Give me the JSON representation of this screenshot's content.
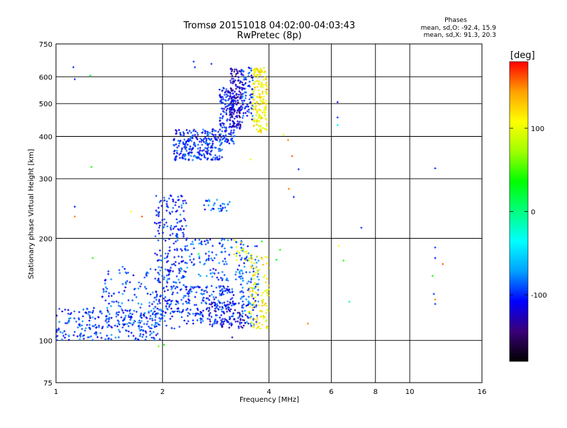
{
  "header": {
    "title_line1": "Tromsø 20151018 04:02:00-04:03:43",
    "title_line2": "RwPretec (8p)",
    "stats_title": "Phases",
    "stats_line1": "mean, sd,O: -92.4, 15.9",
    "stats_line2": "mean, sd,X:  91.3, 20.3"
  },
  "colorbar": {
    "label": "[deg]",
    "tick_labels": [
      "100",
      "0",
      "-100"
    ],
    "tick_values": [
      100,
      0,
      -100
    ],
    "range": [
      -180,
      180
    ],
    "stops": [
      "#000000",
      "#3a0078",
      "#0000ff",
      "#00a0ff",
      "#00ffff",
      "#00ff80",
      "#00ff00",
      "#a0ff00",
      "#ffff00",
      "#ffa000",
      "#ff0000"
    ]
  },
  "chart_data": {
    "type": "scatter",
    "title": "Tromsø 20151018 04:02:00-04:03:43",
    "subtitle": "RwPretec (8p)",
    "xlabel": "Frequency [MHz]",
    "ylabel": "Stationary phase Virtual Height [km]",
    "x_scale": "log",
    "y_scale": "log",
    "xlim": [
      1,
      16
    ],
    "ylim": [
      75,
      750
    ],
    "x_ticks": [
      1,
      2,
      4,
      6,
      8,
      10,
      16
    ],
    "y_ticks": [
      75,
      100,
      200,
      300,
      400,
      500,
      600,
      750
    ],
    "x_tick_labels": [
      "1",
      "2",
      "4",
      "6",
      "8",
      "10",
      "16"
    ],
    "y_tick_labels": [
      "75",
      "100",
      "200",
      "300",
      "400",
      "500",
      "600",
      "750"
    ],
    "grid": true,
    "color_variable": "phase [deg]",
    "series": [
      {
        "clusters": [
          {
            "f_range": [
              1.0,
              2.0
            ],
            "h_range": [
              100,
              125
            ],
            "phase": -95,
            "count": 260
          },
          {
            "f_range": [
              1.35,
              2.3
            ],
            "h_range": [
              108,
              165
            ],
            "phase": -95,
            "count": 160
          },
          {
            "f_range": [
              1.9,
              2.35
            ],
            "h_range": [
              120,
              270
            ],
            "phase": -100,
            "count": 240
          },
          {
            "f_range": [
              2.3,
              3.2
            ],
            "h_range": [
              112,
              145
            ],
            "phase": -100,
            "count": 200
          },
          {
            "f_range": [
              2.3,
              3.4
            ],
            "h_range": [
              150,
              200
            ],
            "phase": -90,
            "count": 110
          },
          {
            "f_range": [
              2.7,
              3.5
            ],
            "h_range": [
              108,
              130
            ],
            "phase": -120,
            "count": 80
          },
          {
            "f_range": [
              3.3,
              3.75
            ],
            "h_range": [
              110,
              190
            ],
            "phase": -90,
            "count": 110
          },
          {
            "f_range": [
              2.6,
              3.1
            ],
            "h_range": [
              240,
              260
            ],
            "phase": -90,
            "count": 30
          },
          {
            "f_range": [
              2.15,
              2.95
            ],
            "h_range": [
              340,
              420
            ],
            "phase": -100,
            "count": 260
          },
          {
            "f_range": [
              2.9,
              3.2
            ],
            "h_range": [
              380,
              560
            ],
            "phase": -105,
            "count": 140
          },
          {
            "f_range": [
              3.1,
              3.35
            ],
            "h_range": [
              420,
              640
            ],
            "phase": -125,
            "count": 150
          },
          {
            "f_range": [
              3.35,
              3.6
            ],
            "h_range": [
              440,
              640
            ],
            "phase": -100,
            "count": 80
          }
        ]
      },
      {
        "clusters": [
          {
            "f_range": [
              3.6,
              3.95
            ],
            "h_range": [
              410,
              640
            ],
            "phase": 110,
            "count": 170
          },
          {
            "f_range": [
              3.5,
              4.0
            ],
            "h_range": [
              108,
              180
            ],
            "phase": 110,
            "count": 110
          },
          {
            "f_range": [
              3.1,
              3.5
            ],
            "h_range": [
              170,
              200
            ],
            "phase": 100,
            "count": 14
          }
        ]
      }
    ],
    "scattered_points": [
      {
        "f": 1.12,
        "h": 640,
        "phase": -100
      },
      {
        "f": 1.13,
        "h": 590,
        "phase": -100
      },
      {
        "f": 1.25,
        "h": 605,
        "phase": 20
      },
      {
        "f": 1.26,
        "h": 325,
        "phase": 40
      },
      {
        "f": 1.13,
        "h": 248,
        "phase": -100
      },
      {
        "f": 1.13,
        "h": 232,
        "phase": 150
      },
      {
        "f": 1.27,
        "h": 175,
        "phase": 40
      },
      {
        "f": 1.63,
        "h": 240,
        "phase": 110
      },
      {
        "f": 1.75,
        "h": 232,
        "phase": 160
      },
      {
        "f": 1.95,
        "h": 96,
        "phase": 60
      },
      {
        "f": 2.02,
        "h": 97,
        "phase": 40
      },
      {
        "f": 2.45,
        "h": 665,
        "phase": -100
      },
      {
        "f": 2.47,
        "h": 640,
        "phase": -100
      },
      {
        "f": 2.75,
        "h": 655,
        "phase": -100
      },
      {
        "f": 3.55,
        "h": 342,
        "phase": 100
      },
      {
        "f": 3.95,
        "h": 550,
        "phase": 160
      },
      {
        "f": 3.97,
        "h": 560,
        "phase": 110
      },
      {
        "f": 4.4,
        "h": 405,
        "phase": 100
      },
      {
        "f": 4.53,
        "h": 390,
        "phase": 150
      },
      {
        "f": 4.65,
        "h": 350,
        "phase": 160
      },
      {
        "f": 4.85,
        "h": 320,
        "phase": -100
      },
      {
        "f": 4.7,
        "h": 265,
        "phase": -100
      },
      {
        "f": 4.55,
        "h": 280,
        "phase": 150
      },
      {
        "f": 5.15,
        "h": 112,
        "phase": 150
      },
      {
        "f": 6.25,
        "h": 505,
        "phase": -120
      },
      {
        "f": 6.25,
        "h": 455,
        "phase": -100
      },
      {
        "f": 6.25,
        "h": 432,
        "phase": -40
      },
      {
        "f": 6.3,
        "h": 190,
        "phase": 110
      },
      {
        "f": 6.5,
        "h": 172,
        "phase": 40
      },
      {
        "f": 6.75,
        "h": 130,
        "phase": -10
      },
      {
        "f": 7.3,
        "h": 215,
        "phase": -100
      },
      {
        "f": 11.8,
        "h": 322,
        "phase": -100
      },
      {
        "f": 11.8,
        "h": 188,
        "phase": -100
      },
      {
        "f": 11.8,
        "h": 175,
        "phase": -110
      },
      {
        "f": 11.6,
        "h": 155,
        "phase": 40
      },
      {
        "f": 11.7,
        "h": 137,
        "phase": -100
      },
      {
        "f": 11.8,
        "h": 132,
        "phase": 150
      },
      {
        "f": 11.8,
        "h": 128,
        "phase": -100
      },
      {
        "f": 12.4,
        "h": 168,
        "phase": 160
      },
      {
        "f": 3.15,
        "h": 102,
        "phase": -120
      },
      {
        "f": 4.3,
        "h": 185,
        "phase": 40
      },
      {
        "f": 4.2,
        "h": 173,
        "phase": 30
      },
      {
        "f": 2.53,
        "h": 180,
        "phase": 20
      },
      {
        "f": 3.82,
        "h": 196,
        "phase": 20
      }
    ]
  }
}
